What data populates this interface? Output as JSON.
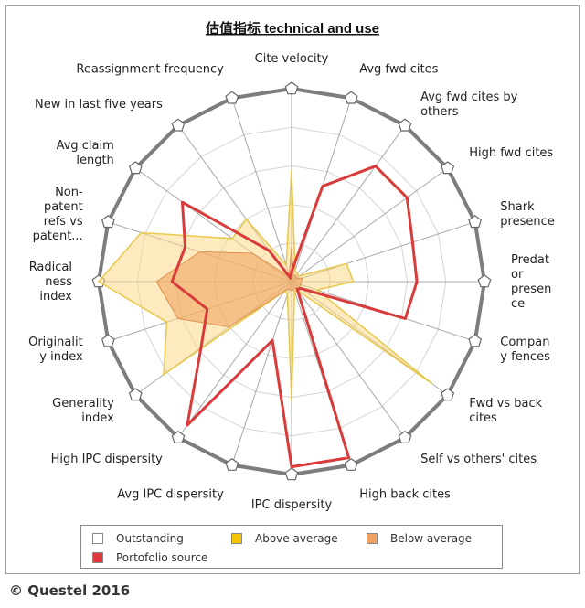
{
  "chart_data": {
    "type": "radar",
    "title": "估值指标 technical and use",
    "axes": [
      "Cite velocity",
      "Avg fwd cites",
      "Avg fwd cites by others",
      "High fwd cites",
      "Shark presence",
      "Predator presence",
      "Company fences",
      "Fwd vs back cites",
      "Self vs others' cites",
      "High back cites",
      "IPC dispersity",
      "Avg IPC dispersity",
      "High IPC dispersity",
      "Generality index",
      "Originality index",
      "Radicalness index",
      "Non-patent refs vs patent...",
      "Avg claim length",
      "New in last five years",
      "Reassignment frequency"
    ],
    "axis_label_lines": [
      [
        "Cite velocity"
      ],
      [
        "Avg fwd cites"
      ],
      [
        "Avg fwd cites by",
        "others"
      ],
      [
        "High fwd cites"
      ],
      [
        "Shark",
        "presence"
      ],
      [
        "Predat",
        "or",
        "presen",
        "ce"
      ],
      [
        "Compan",
        "y fences"
      ],
      [
        "Fwd vs back",
        "cites"
      ],
      [
        "Self vs others' cites"
      ],
      [
        "High back cites"
      ],
      [
        "IPC dispersity"
      ],
      [
        "Avg IPC dispersity"
      ],
      [
        "High IPC dispersity"
      ],
      [
        "Generality",
        "index"
      ],
      [
        "Originalit",
        "y index"
      ],
      [
        "Radical",
        "ness",
        "index"
      ],
      [
        "Non-",
        "patent",
        "refs vs",
        "patent..."
      ],
      [
        "Avg claim",
        "length"
      ],
      [
        "New in last five years"
      ],
      [
        "Reassignment frequency"
      ]
    ],
    "rmax": 1,
    "ring_count": 5,
    "series": [
      {
        "name": "Outstanding",
        "color": "#ffffff",
        "values": [
          1,
          1,
          1,
          1,
          1,
          1,
          1,
          1,
          1,
          1,
          1,
          1,
          1,
          1,
          1,
          1,
          1,
          1,
          1,
          1
        ]
      },
      {
        "name": "Above average",
        "color": "#f5c400",
        "values": [
          0.58,
          0.06,
          0.05,
          0.05,
          0.3,
          0.32,
          0.14,
          0.9,
          0.06,
          0.05,
          0.62,
          0.07,
          0.06,
          0.82,
          0.68,
          1.0,
          0.82,
          0.38,
          0.4,
          0.09
        ]
      },
      {
        "name": "Below average",
        "color": "#f0a060",
        "values": [
          0.18,
          0.03,
          0.04,
          0.03,
          0.06,
          0.05,
          0.05,
          0.05,
          0.04,
          0.04,
          0.05,
          0.04,
          0.06,
          0.4,
          0.62,
          0.7,
          0.5,
          0.25,
          0.04,
          0.04
        ]
      },
      {
        "name": "Portofolio source",
        "color": "#dd3b3b",
        "values": [
          0.05,
          0.52,
          0.74,
          0.74,
          0.66,
          0.65,
          0.62,
          0.06,
          0.05,
          0.96,
          0.96,
          0.32,
          0.92,
          0.58,
          0.46,
          0.62,
          0.58,
          0.7,
          0.2,
          0.02
        ]
      }
    ]
  },
  "legend": {
    "items": [
      {
        "label": "Outstanding",
        "color": "#ffffff"
      },
      {
        "label": "Above average",
        "color": "#f5c400"
      },
      {
        "label": "Below average",
        "color": "#f0a060"
      },
      {
        "label": "Portofolio source",
        "color": "#dd3b3b"
      }
    ]
  },
  "copyright": "© Questel 2016"
}
